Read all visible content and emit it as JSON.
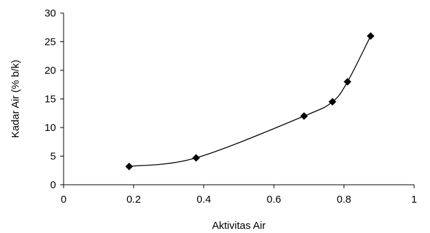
{
  "chart_data": {
    "type": "line",
    "title": "",
    "xlabel": "Aktivitas Air",
    "ylabel": "Kadar Air (% b/k)",
    "xlim": [
      0,
      1
    ],
    "ylim": [
      0,
      30
    ],
    "x_ticks": [
      0,
      0.2,
      0.4,
      0.6,
      0.8,
      1
    ],
    "x_tick_labels": [
      "0",
      "0.2",
      "0.4",
      "0.6",
      "0.8",
      "1"
    ],
    "y_ticks": [
      0,
      5,
      10,
      15,
      20,
      25,
      30
    ],
    "y_tick_labels": [
      "0",
      "5",
      "10",
      "15",
      "20",
      "25",
      "30"
    ],
    "grid": false,
    "legend": "none",
    "marker": "diamond",
    "line_style": "smooth",
    "color": "#000000",
    "series": [
      {
        "x": [
          0.187,
          0.378,
          0.686,
          0.767,
          0.81,
          0.876
        ],
        "y": [
          3.2,
          4.7,
          12.0,
          14.5,
          18.0,
          26.0
        ]
      }
    ]
  }
}
